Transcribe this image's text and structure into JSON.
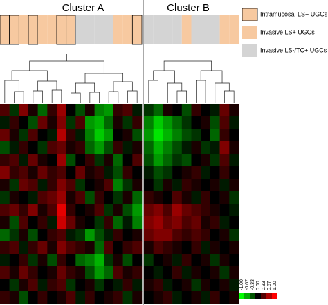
{
  "chart_data": {
    "type": "heatmap",
    "groups": [
      {
        "name": "Intramucosal LS+ UGCs",
        "color": "#f7c9a0",
        "border": "#000000"
      },
      {
        "name": "Invasive LS+ UGCs",
        "color": "#f7c9a0"
      },
      {
        "name": "Invasive LS-/TC+ UGCs",
        "color": "#d4d4d4"
      }
    ],
    "colorscale": {
      "colors": [
        "#00ff00",
        "#000000",
        "#ff0000"
      ],
      "lim": [
        -1,
        1
      ],
      "ticks": [
        {
          "value": -1,
          "label": "-1.00"
        },
        {
          "value": -0.67,
          "label": "-0.67"
        },
        {
          "value": -0.33,
          "label": "-0.33"
        },
        {
          "value": 0,
          "label": "0.00"
        },
        {
          "value": 0.33,
          "label": "0.33"
        },
        {
          "value": 0.67,
          "label": "0.67"
        },
        {
          "value": 1,
          "label": "1.00"
        }
      ]
    },
    "clusters": [
      {
        "name": "Cluster A",
        "column_groups": [
          0,
          0,
          1,
          0,
          1,
          1,
          0,
          0,
          2,
          2,
          2,
          2,
          1,
          1,
          0
        ],
        "values": [
          [
            0.3,
            -0.2,
            0.5,
            0.1,
            -0.4,
            0.2,
            0.6,
            0.0,
            -0.3,
            0.1,
            -0.5,
            -0.6,
            0.2,
            0.3,
            -0.1
          ],
          [
            -0.1,
            0.2,
            0.0,
            -0.3,
            0.4,
            0.1,
            0.5,
            -0.2,
            0.3,
            -0.6,
            -0.7,
            -0.4,
            0.1,
            -0.2,
            0.2
          ],
          [
            0.4,
            0.1,
            -0.2,
            0.3,
            0.0,
            -0.1,
            0.7,
            0.2,
            -0.1,
            -0.5,
            -0.8,
            -0.6,
            0.0,
            0.1,
            -0.3
          ],
          [
            -0.3,
            -0.1,
            0.2,
            0.0,
            -0.2,
            0.3,
            0.4,
            0.1,
            0.2,
            -0.4,
            -0.6,
            -0.3,
            0.2,
            -0.1,
            0.1
          ],
          [
            0.2,
            0.3,
            -0.1,
            0.4,
            0.1,
            0.0,
            0.6,
            -0.3,
            0.0,
            0.2,
            -0.2,
            0.1,
            -0.4,
            0.0,
            0.3
          ],
          [
            0.5,
            0.2,
            0.3,
            0.1,
            0.4,
            0.2,
            0.3,
            0.0,
            0.4,
            0.1,
            0.2,
            -0.1,
            -0.3,
            0.2,
            0.0
          ],
          [
            0.1,
            -0.2,
            0.4,
            0.3,
            -0.1,
            0.2,
            0.5,
            0.3,
            -0.2,
            0.0,
            0.1,
            0.3,
            -0.5,
            -0.2,
            0.1
          ],
          [
            -0.2,
            0.1,
            0.0,
            -0.1,
            0.3,
            0.4,
            0.6,
            0.1,
            0.3,
            -0.3,
            0.2,
            0.0,
            -0.2,
            0.1,
            -0.4
          ],
          [
            0.3,
            0.4,
            0.2,
            0.5,
            0.1,
            0.3,
            0.9,
            0.2,
            0.0,
            0.1,
            0.3,
            -0.2,
            0.1,
            -0.3,
            -0.6
          ],
          [
            0.1,
            -0.3,
            0.3,
            0.0,
            0.2,
            -0.1,
            0.8,
            0.4,
            0.1,
            0.0,
            -0.2,
            0.2,
            -0.4,
            -0.1,
            -0.5
          ],
          [
            -0.4,
            -0.2,
            0.1,
            -0.3,
            0.0,
            0.2,
            0.3,
            -0.1,
            -0.2,
            -0.6,
            -0.3,
            -0.1,
            0.2,
            0.0,
            0.1
          ],
          [
            0.2,
            0.3,
            -0.1,
            0.2,
            0.4,
            0.1,
            0.5,
            0.3,
            0.2,
            0.1,
            -0.4,
            0.3,
            0.0,
            0.2,
            0.3
          ],
          [
            -0.1,
            0.0,
            0.2,
            -0.2,
            0.1,
            -0.3,
            0.2,
            0.0,
            -0.4,
            -0.5,
            -0.7,
            -0.2,
            0.1,
            -0.3,
            0.0
          ],
          [
            0.3,
            0.1,
            0.4,
            0.2,
            0.0,
            0.1,
            0.4,
            0.2,
            0.1,
            -0.3,
            -0.6,
            -0.4,
            0.3,
            0.1,
            0.2
          ],
          [
            0.0,
            -0.2,
            0.1,
            0.3,
            -0.1,
            0.2,
            0.3,
            -0.2,
            0.0,
            0.1,
            -0.2,
            0.0,
            -0.1,
            0.2,
            -0.1
          ],
          [
            0.2,
            0.1,
            -0.3,
            0.0,
            0.2,
            0.0,
            0.1,
            0.3,
            -0.1,
            0.2,
            0.0,
            0.1,
            0.2,
            -0.2,
            0.1
          ]
        ]
      },
      {
        "name": "Cluster B",
        "column_groups": [
          2,
          2,
          2,
          2,
          1,
          2,
          2,
          2,
          1,
          1
        ],
        "values": [
          [
            -0.2,
            -0.4,
            0.1,
            0.0,
            -0.3,
            0.2,
            0.0,
            -0.1,
            0.4,
            0.1
          ],
          [
            -0.5,
            -0.8,
            -0.6,
            -0.4,
            -0.2,
            0.0,
            0.1,
            -0.3,
            0.3,
            -0.1
          ],
          [
            -0.6,
            -0.9,
            -0.7,
            -0.5,
            -0.3,
            -0.2,
            0.0,
            -0.4,
            0.2,
            0.0
          ],
          [
            -0.4,
            -0.7,
            -0.5,
            -0.3,
            -0.1,
            0.1,
            -0.2,
            -0.1,
            0.5,
            0.1
          ],
          [
            -0.3,
            -0.6,
            -0.4,
            -0.2,
            -0.3,
            0.0,
            0.1,
            -0.2,
            0.3,
            -0.1
          ],
          [
            -0.1,
            -0.3,
            -0.2,
            0.0,
            0.1,
            0.2,
            -0.1,
            0.0,
            0.2,
            0.0
          ],
          [
            0.0,
            -0.2,
            0.1,
            -0.1,
            0.2,
            0.1,
            0.0,
            0.1,
            -0.1,
            0.1
          ],
          [
            0.2,
            0.1,
            0.0,
            0.3,
            0.1,
            -0.1,
            0.2,
            0.0,
            0.1,
            -0.2
          ],
          [
            0.4,
            0.5,
            0.3,
            0.6,
            0.4,
            0.3,
            0.2,
            0.1,
            0.0,
            -0.1
          ],
          [
            0.5,
            0.6,
            0.4,
            0.5,
            0.3,
            0.4,
            0.1,
            0.2,
            -0.1,
            0.0
          ],
          [
            0.4,
            0.5,
            0.5,
            0.3,
            0.2,
            0.3,
            0.2,
            0.0,
            0.1,
            -0.2
          ],
          [
            0.1,
            0.3,
            0.2,
            0.1,
            0.0,
            0.2,
            -0.1,
            0.1,
            0.0,
            0.1
          ],
          [
            -0.2,
            0.0,
            0.1,
            -0.1,
            0.2,
            0.0,
            0.1,
            -0.2,
            0.1,
            0.0
          ],
          [
            0.0,
            -0.1,
            0.0,
            0.2,
            -0.1,
            0.1,
            0.0,
            0.1,
            -0.2,
            0.1
          ],
          [
            0.1,
            0.2,
            -0.1,
            0.0,
            0.1,
            -0.2,
            0.1,
            0.0,
            0.1,
            -0.1
          ],
          [
            0.0,
            0.1,
            0.2,
            -0.1,
            0.0,
            0.1,
            -0.1,
            0.2,
            0.0,
            0.1
          ]
        ]
      }
    ]
  }
}
